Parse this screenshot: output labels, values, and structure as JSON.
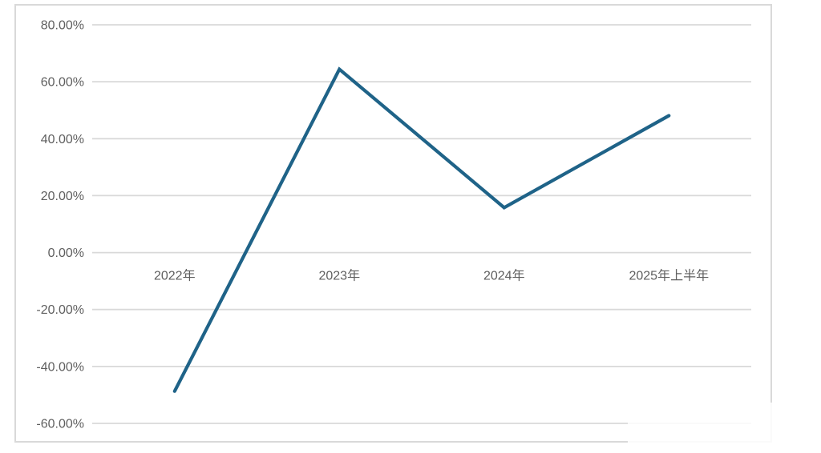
{
  "chart_data": {
    "type": "line",
    "title": "",
    "xlabel": "",
    "ylabel": "",
    "categories": [
      "2022年",
      "2023年",
      "2024年",
      "2025年上半年"
    ],
    "series": [
      {
        "name": "",
        "values": [
          -48.7,
          64.4,
          15.8,
          48.1
        ]
      }
    ],
    "yticks": [
      {
        "label": "80.00%",
        "value": 80
      },
      {
        "label": "60.00%",
        "value": 60
      },
      {
        "label": "40.00%",
        "value": 40
      },
      {
        "label": "20.00%",
        "value": 20
      },
      {
        "label": "0.00%",
        "value": 0
      },
      {
        "label": "-20.00%",
        "value": -20
      },
      {
        "label": "-40.00%",
        "value": -40
      },
      {
        "label": "-60.00%",
        "value": -60
      }
    ],
    "ylim": [
      -60,
      80
    ],
    "value_format": "percent",
    "grid": true,
    "legend": false,
    "markers": false,
    "x_labels_position": "below-zero-line",
    "colors": {
      "line": "#1f6388",
      "grid": "#d9d9d9",
      "border": "#d9d9d9",
      "text": "#5f5f5f",
      "background": "#ffffff"
    }
  }
}
